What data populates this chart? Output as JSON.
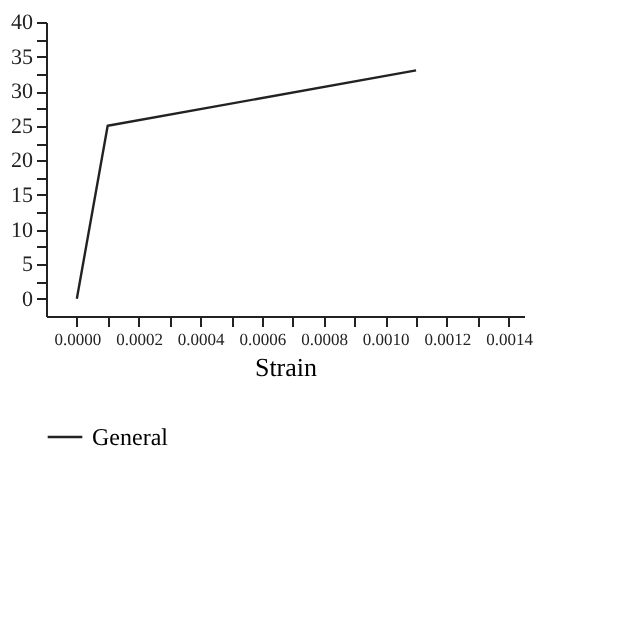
{
  "chart_data": {
    "type": "line",
    "xlabel": "Strain",
    "x": [
      0,
      0.0001,
      0.0011
    ],
    "series": [
      {
        "name": "General",
        "color": "#222222",
        "values": [
          0,
          25,
          33
        ]
      }
    ],
    "xlim": [
      -0.0001,
      0.00145
    ],
    "ylim": [
      -2.5,
      40
    ],
    "xticks": [
      {
        "value": 0,
        "label": "0.0000"
      },
      {
        "value": 0.0001,
        "label": null
      },
      {
        "value": 0.0002,
        "label": "0.0002"
      },
      {
        "value": 0.0003,
        "label": null
      },
      {
        "value": 0.0004,
        "label": "0.0004"
      },
      {
        "value": 0.0005,
        "label": null
      },
      {
        "value": 0.0006,
        "label": "0.0006"
      },
      {
        "value": 0.0007,
        "label": null
      },
      {
        "value": 0.0008,
        "label": "0.0008"
      },
      {
        "value": 0.0009,
        "label": null
      },
      {
        "value": 0.001,
        "label": "0.0010"
      },
      {
        "value": 0.0011,
        "label": null
      },
      {
        "value": 0.0012,
        "label": "0.0012"
      },
      {
        "value": 0.0013,
        "label": null
      },
      {
        "value": 0.0014,
        "label": "0.0014"
      }
    ],
    "yticks": [
      0,
      {
        "value": 2.5,
        "label": null
      },
      5,
      {
        "value": 7.5,
        "label": null
      },
      10,
      {
        "value": 12.5,
        "label": null
      },
      15,
      {
        "value": 17.5,
        "label": null
      },
      20,
      {
        "value": 22.5,
        "label": null
      },
      25,
      {
        "value": 27.5,
        "label": null
      },
      30,
      {
        "value": 32.5,
        "label": null
      },
      35,
      {
        "value": 37.5,
        "label": null
      },
      40
    ],
    "grid": false,
    "legend": "bottom",
    "marker": "none",
    "line_style": "solid"
  }
}
